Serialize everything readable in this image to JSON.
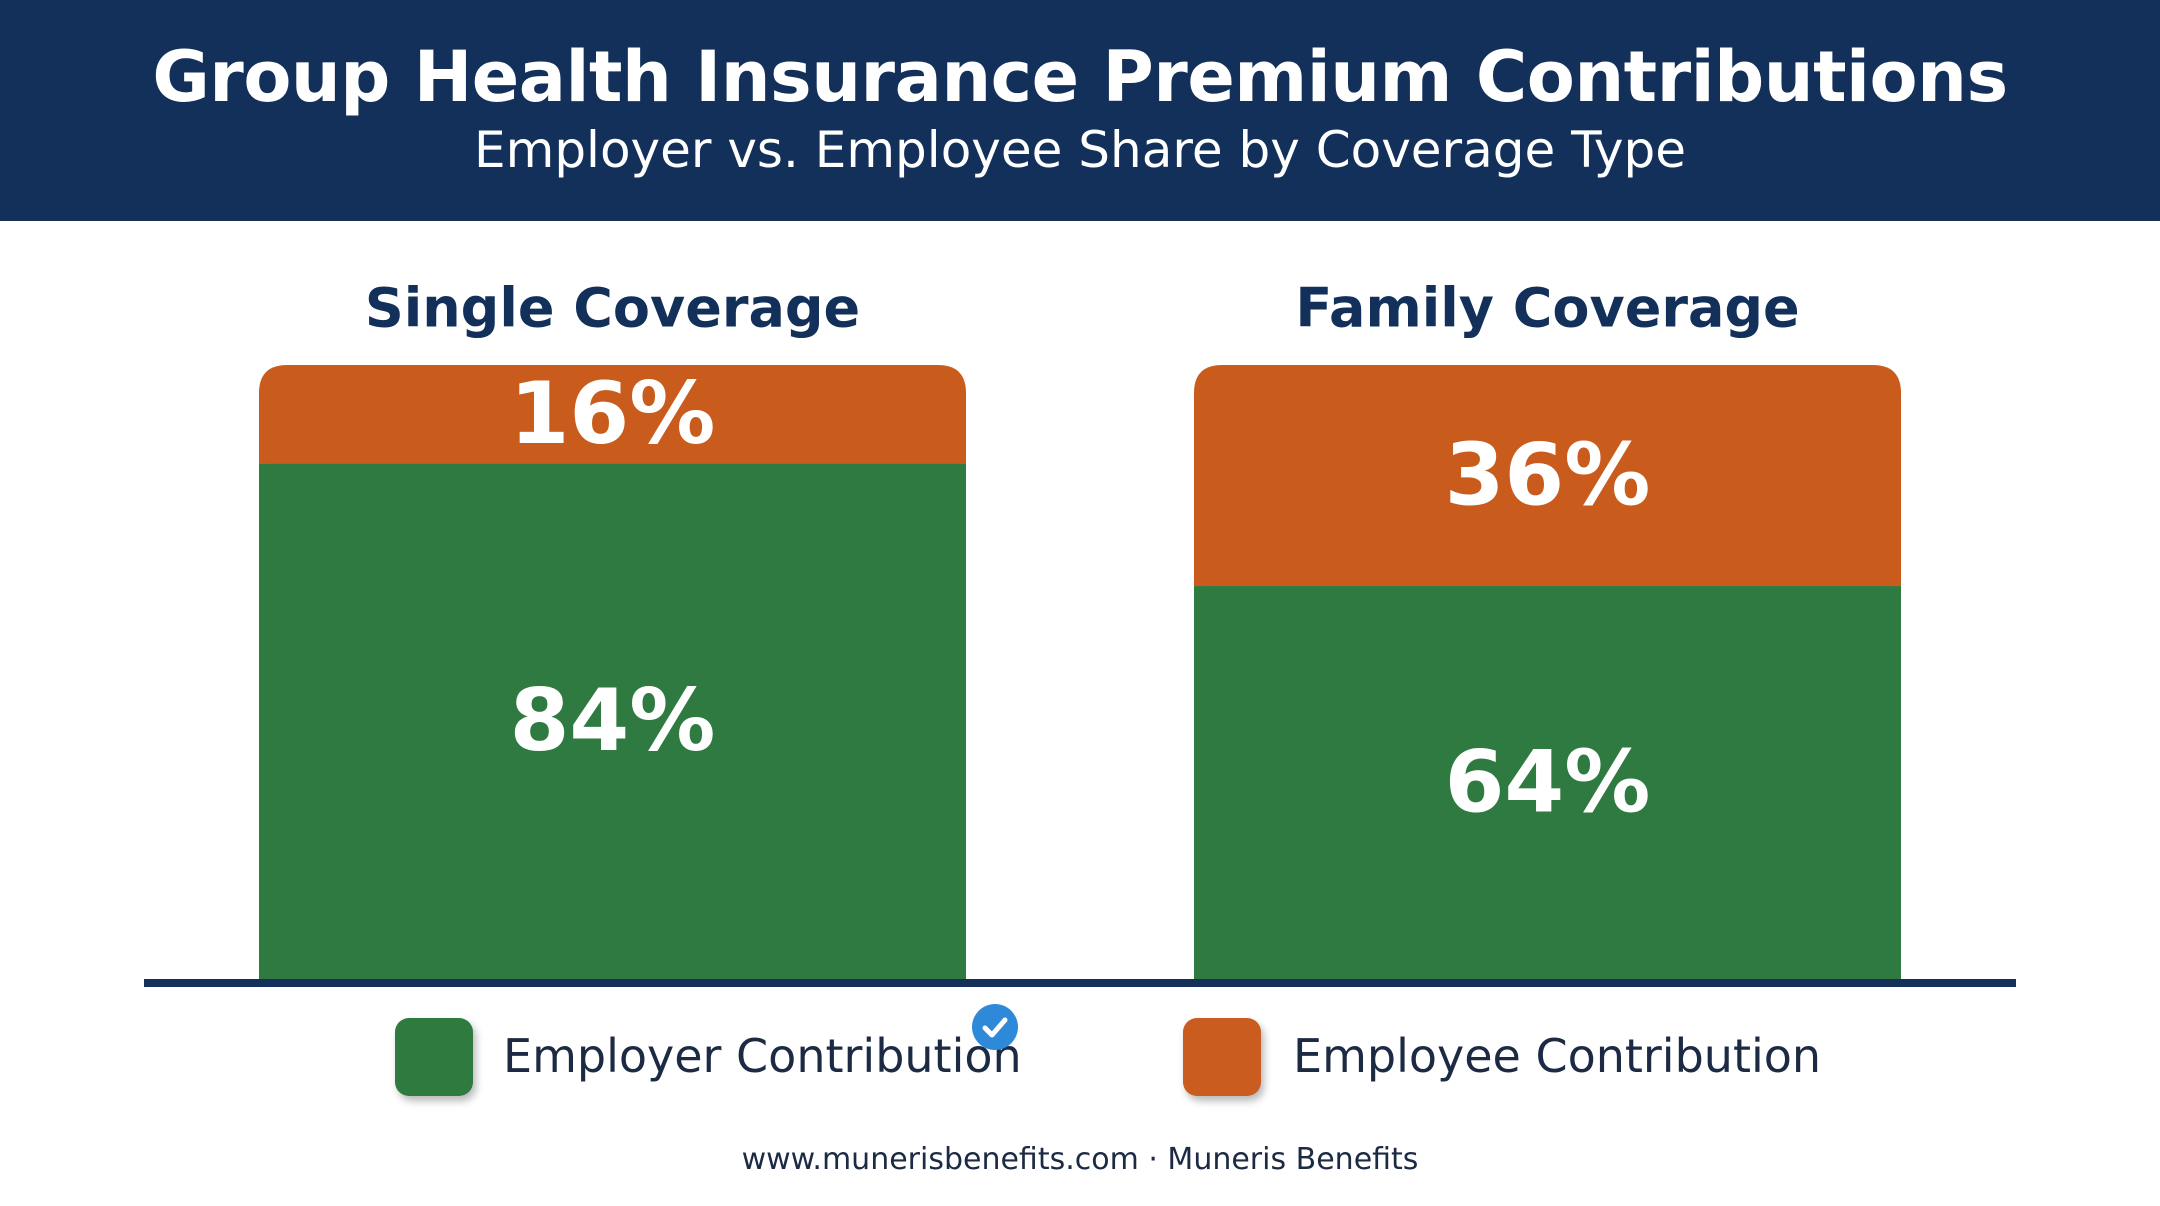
{
  "header": {
    "title": "Group Health Insurance Premium Contributions",
    "subtitle": "Employer vs. Employee Share by Coverage Type"
  },
  "colors": {
    "header_bg": "#12305a",
    "employer": "#2f7a3f",
    "employee": "#c95c1e",
    "baseline": "#12305a",
    "badge": "#2e8ad8"
  },
  "chart_data": {
    "type": "bar",
    "stacked": true,
    "categories": [
      "Single Coverage",
      "Family Coverage"
    ],
    "series": [
      {
        "name": "Employer Contribution",
        "values": [
          84,
          64
        ],
        "labels": [
          "84%",
          "64%"
        ]
      },
      {
        "name": "Employee Contribution",
        "values": [
          16,
          36
        ],
        "labels": [
          "16%",
          "36%"
        ]
      }
    ],
    "ylim": [
      0,
      100
    ],
    "grid": false,
    "legend_position": "bottom"
  },
  "legend": {
    "employer_label": "Employer Contribution",
    "employee_label": "Employee Contribution",
    "badge_icon": "verified-check-icon"
  },
  "footer": {
    "text": "www.munerisbenefits.com · Muneris Benefits"
  }
}
